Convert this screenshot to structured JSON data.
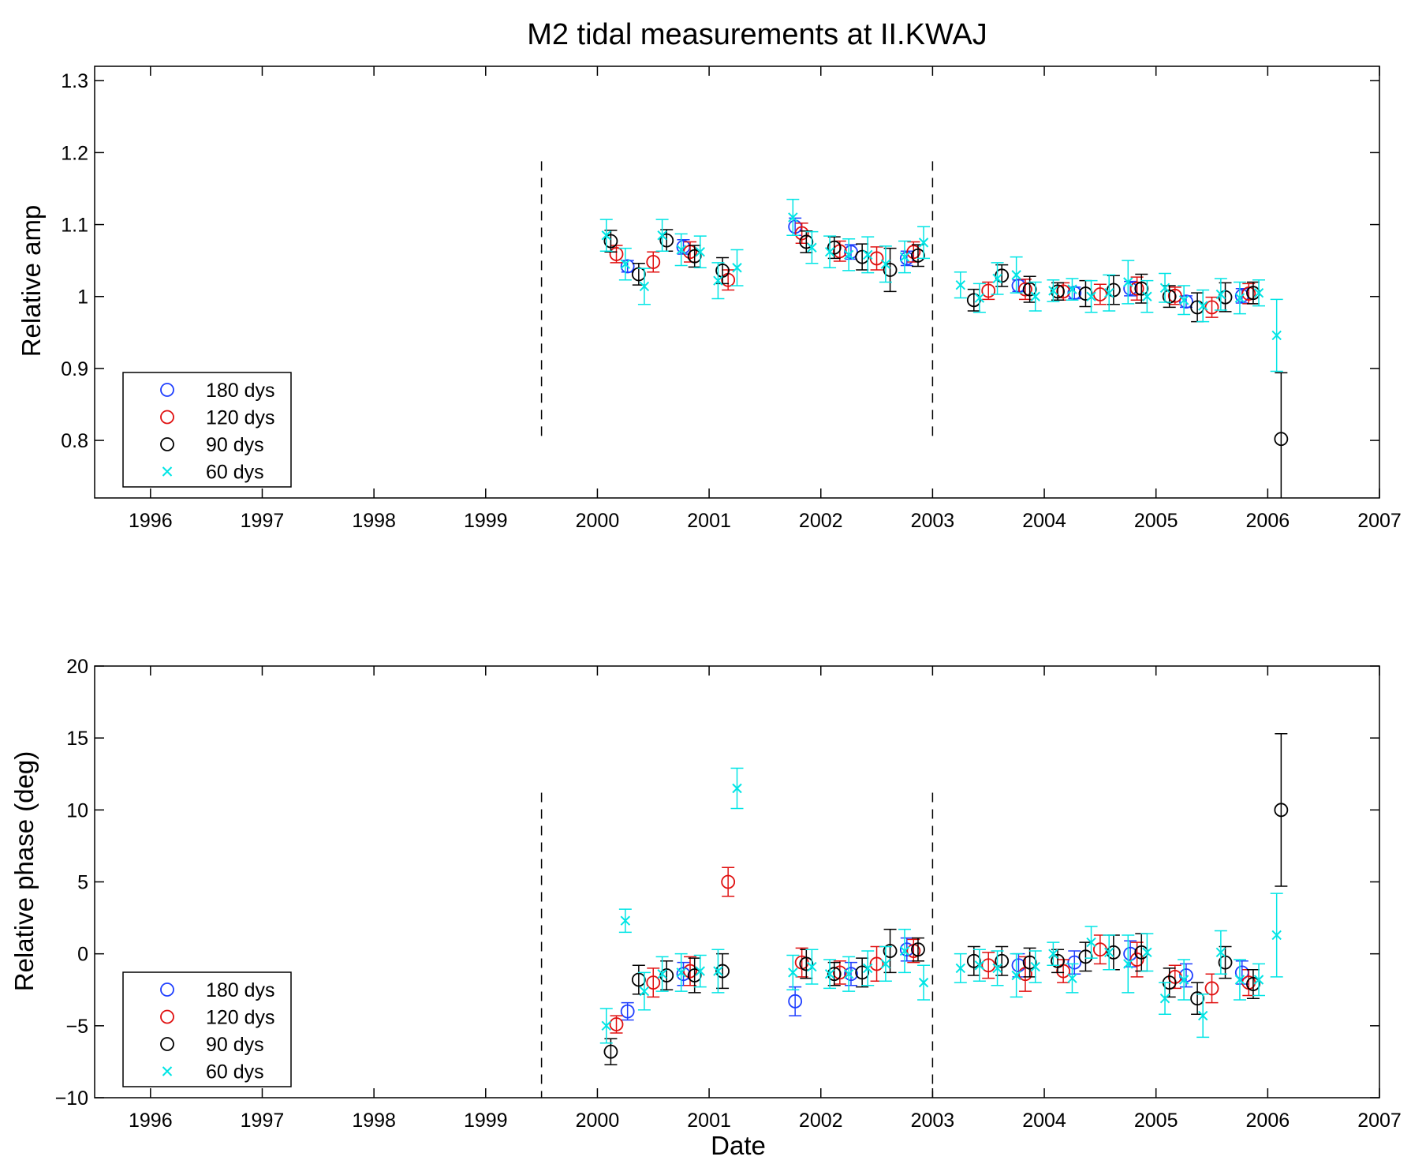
{
  "figure": {
    "title": "M2 tidal measurements at II.KWAJ",
    "xlabel": "Date"
  },
  "legend": [
    {
      "label": "180 dys",
      "marker": "circle",
      "color": "#1f3fff"
    },
    {
      "label": "120 dys",
      "marker": "circle",
      "color": "#e01010"
    },
    {
      "label": "90 dys",
      "marker": "circle",
      "color": "#000000"
    },
    {
      "label": "60 dys",
      "marker": "x",
      "color": "#00e5e5"
    }
  ],
  "chart_data": [
    {
      "type": "scatter",
      "ylabel": "Relative amp",
      "xlim": [
        1995.5,
        2007
      ],
      "ylim": [
        0.72,
        1.32
      ],
      "yticks": [
        0.8,
        0.9,
        1,
        1.1,
        1.2,
        1.3
      ],
      "ytick_labels": [
        "0.8",
        "0.9",
        "1",
        "1.1",
        "1.2",
        "1.3"
      ],
      "xticks": [
        1996,
        1997,
        1998,
        1999,
        2000,
        2001,
        2002,
        2003,
        2004,
        2005,
        2006,
        2007
      ],
      "xtick_labels": [
        "1996",
        "1997",
        "1998",
        "1999",
        "2000",
        "2001",
        "2002",
        "2003",
        "2004",
        "2005",
        "2006",
        "2007"
      ],
      "vlines": [
        1999.5,
        2003.0
      ],
      "legend_position": "bottom-left",
      "series": [
        {
          "name": "180 dys",
          "marker": "circle",
          "color": "#1f3fff",
          "points": [
            [
              2000.27,
              1.042,
              0.008
            ],
            [
              2000.77,
              1.069,
              0.01
            ],
            [
              2001.77,
              1.097,
              0.012
            ],
            [
              2002.27,
              1.062,
              0.01
            ],
            [
              2002.77,
              1.053,
              0.01
            ],
            [
              2003.77,
              1.015,
              0.008
            ],
            [
              2004.27,
              1.005,
              0.008
            ],
            [
              2004.77,
              1.011,
              0.01
            ],
            [
              2005.27,
              0.993,
              0.008
            ],
            [
              2005.77,
              1.001,
              0.01
            ]
          ]
        },
        {
          "name": "120 dys",
          "marker": "circle",
          "color": "#e01010",
          "points": [
            [
              2000.17,
              1.059,
              0.012
            ],
            [
              2000.5,
              1.048,
              0.014
            ],
            [
              2000.83,
              1.062,
              0.014
            ],
            [
              2001.17,
              1.023,
              0.014
            ],
            [
              2001.83,
              1.088,
              0.014
            ],
            [
              2002.17,
              1.063,
              0.014
            ],
            [
              2002.5,
              1.053,
              0.016
            ],
            [
              2002.83,
              1.062,
              0.014
            ],
            [
              2003.5,
              1.008,
              0.012
            ],
            [
              2003.83,
              1.01,
              0.014
            ],
            [
              2004.17,
              1.007,
              0.012
            ],
            [
              2004.5,
              1.003,
              0.014
            ],
            [
              2004.83,
              1.011,
              0.016
            ],
            [
              2005.17,
              1.001,
              0.012
            ],
            [
              2005.5,
              0.985,
              0.014
            ],
            [
              2005.83,
              1.004,
              0.014
            ]
          ]
        },
        {
          "name": "90 dys",
          "marker": "circle",
          "color": "#000000",
          "points": [
            [
              2000.12,
              1.077,
              0.015
            ],
            [
              2000.37,
              1.031,
              0.015
            ],
            [
              2000.62,
              1.078,
              0.015
            ],
            [
              2000.87,
              1.056,
              0.015
            ],
            [
              2001.12,
              1.036,
              0.018
            ],
            [
              2001.87,
              1.076,
              0.015
            ],
            [
              2002.12,
              1.068,
              0.015
            ],
            [
              2002.37,
              1.055,
              0.018
            ],
            [
              2002.62,
              1.037,
              0.03
            ],
            [
              2002.87,
              1.057,
              0.015
            ],
            [
              2003.37,
              0.995,
              0.015
            ],
            [
              2003.62,
              1.029,
              0.015
            ],
            [
              2003.87,
              1.01,
              0.018
            ],
            [
              2004.12,
              1.007,
              0.012
            ],
            [
              2004.37,
              1.004,
              0.018
            ],
            [
              2004.62,
              1.009,
              0.02
            ],
            [
              2004.87,
              1.011,
              0.02
            ],
            [
              2005.12,
              1.0,
              0.015
            ],
            [
              2005.37,
              0.985,
              0.02
            ],
            [
              2005.62,
              0.999,
              0.02
            ],
            [
              2005.87,
              1.005,
              0.015
            ],
            [
              2006.12,
              0.802,
              0.092
            ]
          ]
        },
        {
          "name": "60 dys",
          "marker": "x",
          "color": "#00e5e5",
          "points": [
            [
              2000.08,
              1.085,
              0.022
            ],
            [
              2000.25,
              1.045,
              0.022
            ],
            [
              2000.42,
              1.014,
              0.025
            ],
            [
              2000.58,
              1.085,
              0.022
            ],
            [
              2000.75,
              1.065,
              0.022
            ],
            [
              2000.92,
              1.062,
              0.022
            ],
            [
              2001.08,
              1.022,
              0.025
            ],
            [
              2001.25,
              1.04,
              0.025
            ],
            [
              2001.75,
              1.11,
              0.025
            ],
            [
              2001.92,
              1.068,
              0.022
            ],
            [
              2002.08,
              1.062,
              0.022
            ],
            [
              2002.25,
              1.058,
              0.022
            ],
            [
              2002.42,
              1.058,
              0.025
            ],
            [
              2002.58,
              1.045,
              0.025
            ],
            [
              2002.75,
              1.055,
              0.022
            ],
            [
              2002.92,
              1.075,
              0.022
            ],
            [
              2003.25,
              1.016,
              0.018
            ],
            [
              2003.42,
              0.998,
              0.02
            ],
            [
              2003.58,
              1.025,
              0.022
            ],
            [
              2003.75,
              1.03,
              0.025
            ],
            [
              2003.92,
              1.0,
              0.02
            ],
            [
              2004.08,
              1.008,
              0.015
            ],
            [
              2004.25,
              1.01,
              0.015
            ],
            [
              2004.42,
              1.0,
              0.022
            ],
            [
              2004.58,
              1.005,
              0.025
            ],
            [
              2004.75,
              1.02,
              0.03
            ],
            [
              2004.92,
              1.0,
              0.022
            ],
            [
              2005.08,
              1.012,
              0.02
            ],
            [
              2005.25,
              0.995,
              0.02
            ],
            [
              2005.42,
              0.987,
              0.022
            ],
            [
              2005.58,
              1.003,
              0.022
            ],
            [
              2005.75,
              0.998,
              0.022
            ],
            [
              2005.92,
              1.005,
              0.018
            ],
            [
              2006.08,
              0.946,
              0.05
            ]
          ]
        }
      ]
    },
    {
      "type": "scatter",
      "ylabel": "Relative phase (deg)",
      "xlabel": "Date",
      "xlim": [
        1995.5,
        2007
      ],
      "ylim": [
        -10,
        20
      ],
      "yticks": [
        -10,
        -5,
        0,
        5,
        10,
        15,
        20
      ],
      "ytick_labels": [
        "−10",
        "−5",
        "0",
        "5",
        "10",
        "15",
        "20"
      ],
      "xticks": [
        1996,
        1997,
        1998,
        1999,
        2000,
        2001,
        2002,
        2003,
        2004,
        2005,
        2006,
        2007
      ],
      "xtick_labels": [
        "1996",
        "1997",
        "1998",
        "1999",
        "2000",
        "2001",
        "2002",
        "2003",
        "2004",
        "2005",
        "2006",
        "2007"
      ],
      "vlines": [
        1999.5,
        2003.0
      ],
      "legend_position": "bottom-left",
      "series": [
        {
          "name": "180 dys",
          "marker": "circle",
          "color": "#1f3fff",
          "points": [
            [
              2000.27,
              -4.0,
              0.6
            ],
            [
              2000.77,
              -1.4,
              0.8
            ],
            [
              2001.77,
              -3.3,
              1.0
            ],
            [
              2002.27,
              -1.4,
              0.8
            ],
            [
              2002.77,
              0.3,
              0.8
            ],
            [
              2003.77,
              -0.8,
              0.8
            ],
            [
              2004.27,
              -0.6,
              0.8
            ],
            [
              2004.77,
              0.0,
              0.9
            ],
            [
              2005.27,
              -1.5,
              0.8
            ],
            [
              2005.77,
              -1.3,
              0.8
            ]
          ]
        },
        {
          "name": "120 dys",
          "marker": "circle",
          "color": "#e01010",
          "points": [
            [
              2000.17,
              -4.9,
              0.6
            ],
            [
              2000.5,
              -2.0,
              1.0
            ],
            [
              2000.83,
              -1.2,
              1.0
            ],
            [
              2001.17,
              5.0,
              1.0
            ],
            [
              2001.83,
              -0.6,
              1.0
            ],
            [
              2002.17,
              -1.3,
              0.8
            ],
            [
              2002.5,
              -0.7,
              1.2
            ],
            [
              2002.83,
              0.2,
              0.8
            ],
            [
              2003.5,
              -0.8,
              0.9
            ],
            [
              2003.83,
              -1.4,
              1.2
            ],
            [
              2004.17,
              -1.2,
              0.8
            ],
            [
              2004.5,
              0.3,
              1.0
            ],
            [
              2004.83,
              -0.4,
              1.2
            ],
            [
              2005.17,
              -1.6,
              0.8
            ],
            [
              2005.5,
              -2.4,
              1.0
            ],
            [
              2005.83,
              -2.0,
              0.9
            ]
          ]
        },
        {
          "name": "90 dys",
          "marker": "circle",
          "color": "#000000",
          "points": [
            [
              2000.12,
              -6.8,
              0.9
            ],
            [
              2000.37,
              -1.8,
              1.0
            ],
            [
              2000.62,
              -1.5,
              1.0
            ],
            [
              2000.87,
              -1.5,
              1.2
            ],
            [
              2001.12,
              -1.2,
              1.2
            ],
            [
              2001.87,
              -0.7,
              1.0
            ],
            [
              2002.12,
              -1.4,
              0.8
            ],
            [
              2002.37,
              -1.3,
              1.0
            ],
            [
              2002.62,
              0.2,
              1.5
            ],
            [
              2002.87,
              0.3,
              0.8
            ],
            [
              2003.37,
              -0.5,
              1.0
            ],
            [
              2003.62,
              -0.5,
              1.0
            ],
            [
              2003.87,
              -0.6,
              1.0
            ],
            [
              2004.12,
              -0.5,
              0.8
            ],
            [
              2004.37,
              -0.2,
              1.0
            ],
            [
              2004.62,
              0.1,
              1.2
            ],
            [
              2004.87,
              0.1,
              1.3
            ],
            [
              2005.12,
              -2.0,
              1.0
            ],
            [
              2005.37,
              -3.1,
              1.1
            ],
            [
              2005.62,
              -0.6,
              1.1
            ],
            [
              2005.87,
              -2.1,
              1.0
            ],
            [
              2006.12,
              10.0,
              5.3
            ]
          ]
        },
        {
          "name": "60 dys",
          "marker": "x",
          "color": "#00e5e5",
          "points": [
            [
              2000.08,
              -5.0,
              1.2
            ],
            [
              2000.25,
              2.3,
              0.8
            ],
            [
              2000.42,
              -2.6,
              1.3
            ],
            [
              2000.58,
              -1.4,
              1.2
            ],
            [
              2000.75,
              -1.3,
              1.3
            ],
            [
              2000.92,
              -1.2,
              1.1
            ],
            [
              2001.08,
              -1.2,
              1.5
            ],
            [
              2001.25,
              11.5,
              1.4
            ],
            [
              2001.75,
              -1.3,
              1.2
            ],
            [
              2001.92,
              -0.9,
              1.2
            ],
            [
              2002.08,
              -1.4,
              1.0
            ],
            [
              2002.25,
              -1.4,
              1.2
            ],
            [
              2002.42,
              -1.0,
              1.2
            ],
            [
              2002.58,
              -0.7,
              1.2
            ],
            [
              2002.75,
              0.2,
              1.5
            ],
            [
              2002.92,
              -2.0,
              1.2
            ],
            [
              2003.25,
              -1.0,
              1.0
            ],
            [
              2003.42,
              -0.8,
              1.1
            ],
            [
              2003.58,
              -1.0,
              1.2
            ],
            [
              2003.75,
              -1.5,
              1.5
            ],
            [
              2003.92,
              -0.9,
              1.1
            ],
            [
              2004.08,
              0.0,
              0.8
            ],
            [
              2004.25,
              -1.7,
              1.0
            ],
            [
              2004.42,
              0.8,
              1.1
            ],
            [
              2004.58,
              0.1,
              1.2
            ],
            [
              2004.75,
              -0.7,
              2.0
            ],
            [
              2004.92,
              0.1,
              1.3
            ],
            [
              2005.08,
              -3.1,
              1.1
            ],
            [
              2005.25,
              -1.8,
              1.4
            ],
            [
              2005.42,
              -4.3,
              1.5
            ],
            [
              2005.58,
              0.1,
              1.5
            ],
            [
              2005.75,
              -1.8,
              1.4
            ],
            [
              2005.92,
              -1.8,
              1.1
            ],
            [
              2006.08,
              1.3,
              2.9
            ]
          ]
        }
      ]
    }
  ]
}
